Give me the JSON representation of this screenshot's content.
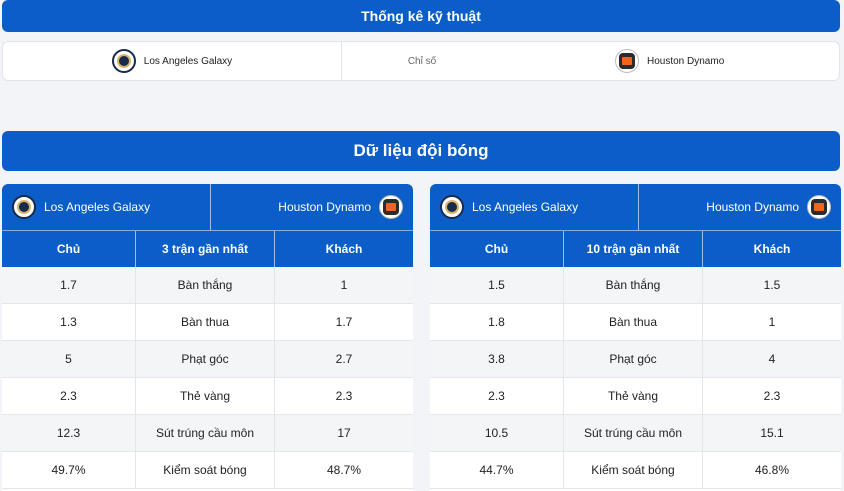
{
  "tech_stats": {
    "title": "Thống kê kỹ thuật",
    "home_team": "Los Angeles Galaxy",
    "middle_label": "Chỉ số",
    "away_team": "Houston Dynamo"
  },
  "team_data": {
    "title": "Dữ liệu đội bóng",
    "panels": [
      {
        "home_team": "Los Angeles Galaxy",
        "away_team": "Houston Dynamo",
        "headers": [
          "Chủ",
          "3 trận gần nhất",
          "Khách"
        ],
        "rows": [
          [
            "1.7",
            "Bàn thắng",
            "1"
          ],
          [
            "1.3",
            "Bàn thua",
            "1.7"
          ],
          [
            "5",
            "Phạt góc",
            "2.7"
          ],
          [
            "2.3",
            "Thẻ vàng",
            "2.3"
          ],
          [
            "12.3",
            "Sút trúng cầu môn",
            "17"
          ],
          [
            "49.7%",
            "Kiểm soát bóng",
            "48.7%"
          ]
        ]
      },
      {
        "home_team": "Los Angeles Galaxy",
        "away_team": "Houston Dynamo",
        "headers": [
          "Chủ",
          "10 trận gần nhất",
          "Khách"
        ],
        "rows": [
          [
            "1.5",
            "Bàn thắng",
            "1.5"
          ],
          [
            "1.8",
            "Bàn thua",
            "1"
          ],
          [
            "3.8",
            "Phạt góc",
            "4"
          ],
          [
            "2.3",
            "Thẻ vàng",
            "2.3"
          ],
          [
            "10.5",
            "Sút trúng cầu môn",
            "15.1"
          ],
          [
            "44.7%",
            "Kiểm soát bóng",
            "46.8%"
          ]
        ]
      }
    ]
  },
  "icons": {
    "home_logo": "la-galaxy-logo-icon",
    "away_logo": "houston-dynamo-logo-icon"
  },
  "colors": {
    "primary": "#0b5ec8",
    "row_alt": "#f4f5f7"
  }
}
